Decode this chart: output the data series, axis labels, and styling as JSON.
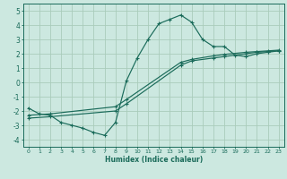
{
  "xlabel": "Humidex (Indice chaleur)",
  "bg_color": "#cce8e0",
  "line_color": "#1a6b5a",
  "grid_color": "#aaccbb",
  "xlim": [
    -0.5,
    23.5
  ],
  "ylim": [
    -4.5,
    5.5
  ],
  "xticks": [
    0,
    1,
    2,
    3,
    4,
    5,
    6,
    7,
    8,
    9,
    10,
    11,
    12,
    13,
    14,
    15,
    16,
    17,
    18,
    19,
    20,
    21,
    22,
    23
  ],
  "yticks": [
    -4,
    -3,
    -2,
    -1,
    0,
    1,
    2,
    3,
    4,
    5
  ],
  "line1_x": [
    0,
    1,
    2,
    3,
    4,
    5,
    6,
    7,
    8,
    9,
    10,
    11,
    12,
    13,
    14,
    15,
    16,
    17,
    18,
    19,
    20,
    21,
    22,
    23
  ],
  "line1_y": [
    -1.8,
    -2.2,
    -2.3,
    -2.8,
    -3.0,
    -3.2,
    -3.5,
    -3.7,
    -2.8,
    0.1,
    1.7,
    3.0,
    4.1,
    4.4,
    4.7,
    4.2,
    3.0,
    2.5,
    2.5,
    1.9,
    1.8,
    2.0,
    2.1,
    2.2
  ],
  "line2_x": [
    0,
    2,
    8,
    9,
    14,
    15,
    17,
    18,
    20,
    21,
    22,
    23
  ],
  "line2_y": [
    -2.5,
    -2.4,
    -2.0,
    -1.5,
    1.2,
    1.5,
    1.7,
    1.8,
    2.0,
    2.1,
    2.15,
    2.2
  ],
  "line3_x": [
    0,
    2,
    8,
    9,
    14,
    15,
    17,
    18,
    20,
    21,
    22,
    23
  ],
  "line3_y": [
    -2.3,
    -2.2,
    -1.7,
    -1.2,
    1.4,
    1.6,
    1.85,
    1.95,
    2.1,
    2.15,
    2.2,
    2.25
  ]
}
